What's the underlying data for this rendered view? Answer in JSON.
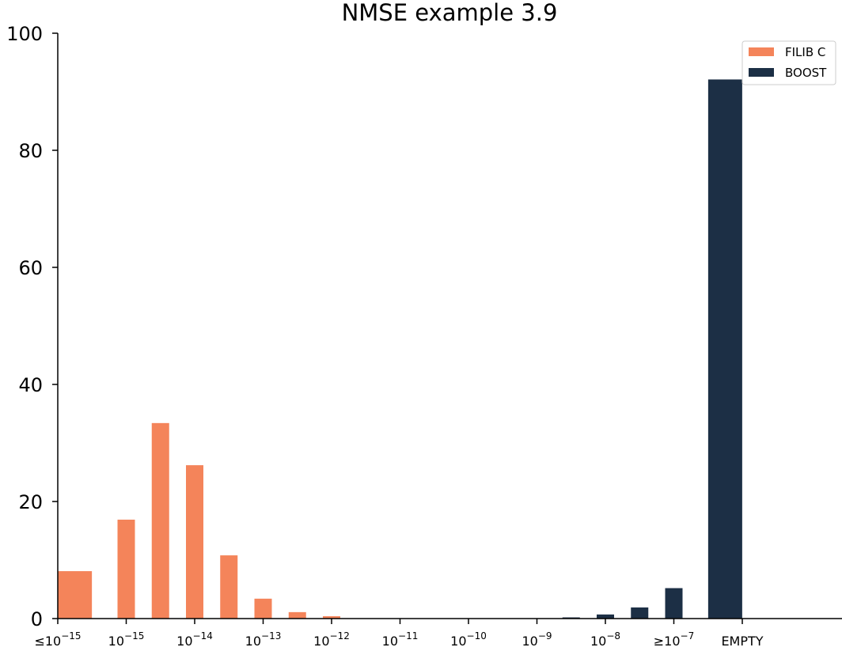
{
  "chart_data": {
    "type": "bar",
    "title": "NMSE example 3.9",
    "xlabel": "",
    "ylabel": "",
    "ylim": [
      0,
      100
    ],
    "yticks": [
      0,
      20,
      40,
      60,
      80,
      100
    ],
    "grid": false,
    "legend_position": "top-right",
    "x_tick_labels": [
      {
        "prefix": "≤",
        "base": "10",
        "exp": "−15"
      },
      {
        "prefix": "",
        "base": "10",
        "exp": "−15"
      },
      {
        "prefix": "",
        "base": "10",
        "exp": "−14"
      },
      {
        "prefix": "",
        "base": "10",
        "exp": "−13"
      },
      {
        "prefix": "",
        "base": "10",
        "exp": "−12"
      },
      {
        "prefix": "",
        "base": "10",
        "exp": "−11"
      },
      {
        "prefix": "",
        "base": "10",
        "exp": "−10"
      },
      {
        "prefix": "",
        "base": "10",
        "exp": "−9"
      },
      {
        "prefix": "",
        "base": "10",
        "exp": "−8"
      },
      {
        "prefix": "≥",
        "base": "10",
        "exp": "−7"
      },
      {
        "prefix": "",
        "base": "EMPTY",
        "exp": ""
      }
    ],
    "series": [
      {
        "name": "FILIB C",
        "color": "#f4845a",
        "bins": [
          {
            "position": 0.25,
            "value": 8.1
          },
          {
            "position": 1.0,
            "value": 16.9
          },
          {
            "position": 1.5,
            "value": 33.4
          },
          {
            "position": 2.0,
            "value": 26.2
          },
          {
            "position": 2.5,
            "value": 10.8
          },
          {
            "position": 3.0,
            "value": 3.4
          },
          {
            "position": 3.5,
            "value": 1.1
          },
          {
            "position": 4.0,
            "value": 0.4
          }
        ]
      },
      {
        "name": "BOOST",
        "color": "#1c2f45",
        "bins": [
          {
            "position": 7.5,
            "value": 0.2
          },
          {
            "position": 8.0,
            "value": 0.7
          },
          {
            "position": 8.5,
            "value": 1.9
          },
          {
            "position": 9.0,
            "value": 5.2
          },
          {
            "position": 9.75,
            "value": 92.1
          }
        ]
      }
    ]
  }
}
